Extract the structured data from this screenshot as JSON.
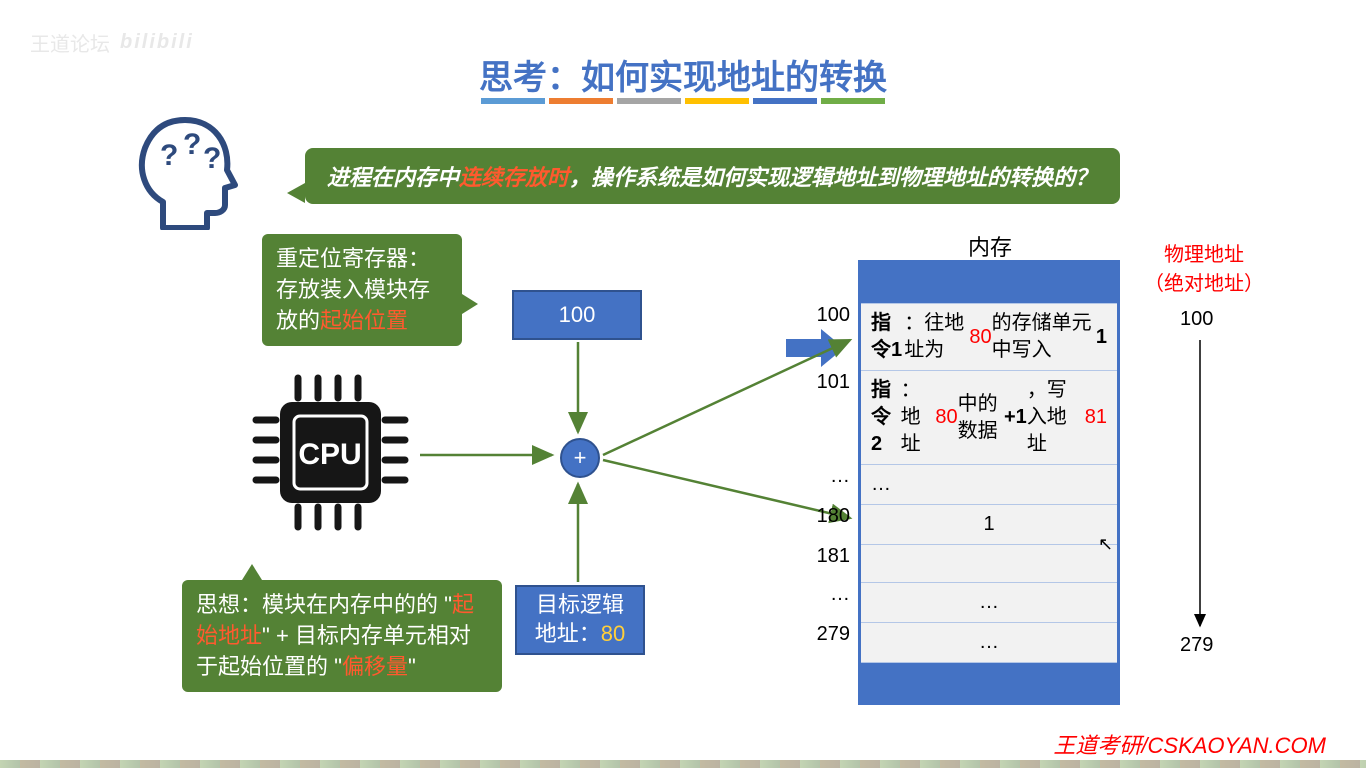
{
  "watermark": {
    "text": "王道论坛",
    "brand": "bilibili"
  },
  "title": {
    "text": "思考：如何实现地址的转换",
    "color": "#4472c4"
  },
  "underline_colors": [
    "#5b9bd5",
    "#ed7d31",
    "#a5a5a5",
    "#ffc000",
    "#4472c4",
    "#70ad47"
  ],
  "question": {
    "prefix": "进程在内存中",
    "highlight": "连续存放时",
    "rest": "，操作系统是如何实现逻辑地址到物理地址的转换的？",
    "bg": "#548235",
    "color": "#ffffff",
    "highlight_color": "#ff5a2e"
  },
  "callout_register": {
    "line1": "重定位寄存器：",
    "line2_a": "存放装入模块存放的",
    "line2_b": "起始位置",
    "bg": "#548235",
    "hl": "#ff5a2e"
  },
  "callout_idea": {
    "line1_a": "思想：模块在内存中的的 \"",
    "line1_b": "起始地址",
    "line2_a": "\" + 目标内存单元相对于起始位置的 \"",
    "line2_b": "偏移量",
    "line2_c": "\"",
    "bg": "#548235",
    "hl": "#ff5a2e"
  },
  "cpu_label": "CPU",
  "box100": {
    "text": "100",
    "bg": "#4472c4",
    "border": "#2f528f"
  },
  "box80": {
    "line1": "目标逻辑",
    "line2_a": "地址：",
    "line2_b": "80",
    "bg": "#4472c4",
    "border": "#2f528f",
    "hl": "#ffcf3a"
  },
  "plus": {
    "symbol": "+",
    "bg": "#4472c4",
    "border": "#2f528f"
  },
  "memory": {
    "title": "内存",
    "container_border": "#4472c4",
    "row_border": "#b4c7e7",
    "rows": [
      {
        "addr": "100",
        "html": "<b>指令1</b>：往地址为 <span class='r'>80</span> 的存储单元中写入 <b>1</b>"
      },
      {
        "addr": "101",
        "html": "<b>指令2</b>：地址 <span class='r'>80</span> 中的数据<b>+1</b>，写入地址 <span class='r'>81</span>"
      },
      {
        "addr": "…",
        "html": "…"
      },
      {
        "addr": "180",
        "html": "<div style='width:100%;text-align:center'>1</div>"
      },
      {
        "addr": "181",
        "html": ""
      },
      {
        "addr": "…",
        "html": "<div style='width:100%;text-align:center'>…</div>"
      },
      {
        "addr": "279",
        "html": "<div style='width:100%;text-align:center'>…</div>"
      }
    ]
  },
  "phys": {
    "title1": "物理地址",
    "title2": "（绝对地址）",
    "color": "#ff0000",
    "top_val": "100",
    "bot_val": "279"
  },
  "footer": {
    "text": "王道考研/CSKAOYAN.COM",
    "color": "#ff0000"
  },
  "arrow_color": "#548235",
  "fat_arrow_color": "#4472c4"
}
